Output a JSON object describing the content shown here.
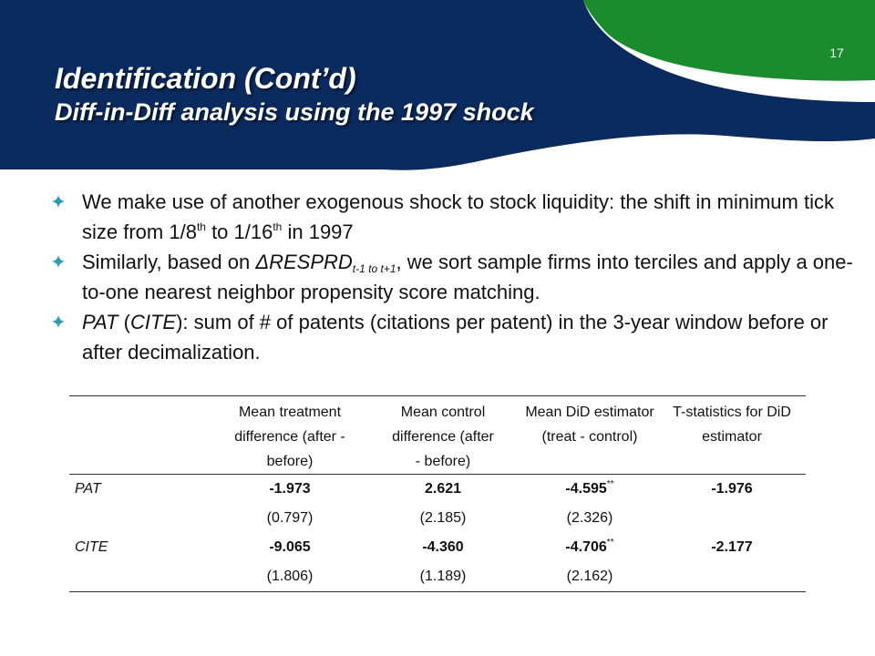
{
  "slide": {
    "number": "17",
    "title": "Identification (Cont’d)",
    "subtitle": "Diff-in-Diff analysis using the 1997 shock"
  },
  "colors": {
    "header_navy": "#0b2a5e",
    "accent_green": "#1a8c2e",
    "bullet_teal": "#2a9cb0"
  },
  "bullets": {
    "b1": {
      "text_a": "We make use of another exogenous shock to stock liquidity: the shift in minimum tick size from 1/8",
      "sup_a": "th",
      "text_b": " to 1/16",
      "sup_b": "th",
      "text_c": " in 1997"
    },
    "b2": {
      "text_a": "Similarly, based on ",
      "italic_var": "ΔRESPRD",
      "sub": "t-1 to t+1",
      "text_b": ", we sort sample firms into terciles and apply a one-to-one nearest neighbor propensity score matching."
    },
    "b3": {
      "italic_a": "PAT",
      "text_a": " (",
      "italic_b": "CITE",
      "text_b": "): sum of # of patents (citations per patent) in the 3-year window before or after decimalization."
    }
  },
  "table": {
    "headers": [
      "",
      "Mean treatment difference (after - before)",
      "Mean control difference (after - before)",
      "Mean DiD estimator (treat - control)",
      "T-statistics for DiD estimator"
    ],
    "rows": [
      {
        "label": "PAT",
        "treat": "-1.973",
        "control": "2.621",
        "did": "-4.595",
        "did_stars": "**",
        "tstat": "-1.976"
      },
      {
        "label": "",
        "treat": "(0.797)",
        "control": "(2.185)",
        "did": "(2.326)",
        "did_stars": "",
        "tstat": ""
      },
      {
        "label": "CITE",
        "treat": "-9.065",
        "control": "-4.360",
        "did": "-4.706",
        "did_stars": "**",
        "tstat": "-2.177"
      },
      {
        "label": "",
        "treat": "(1.806)",
        "control": "(1.189)",
        "did": "(2.162)",
        "did_stars": "",
        "tstat": ""
      }
    ]
  }
}
